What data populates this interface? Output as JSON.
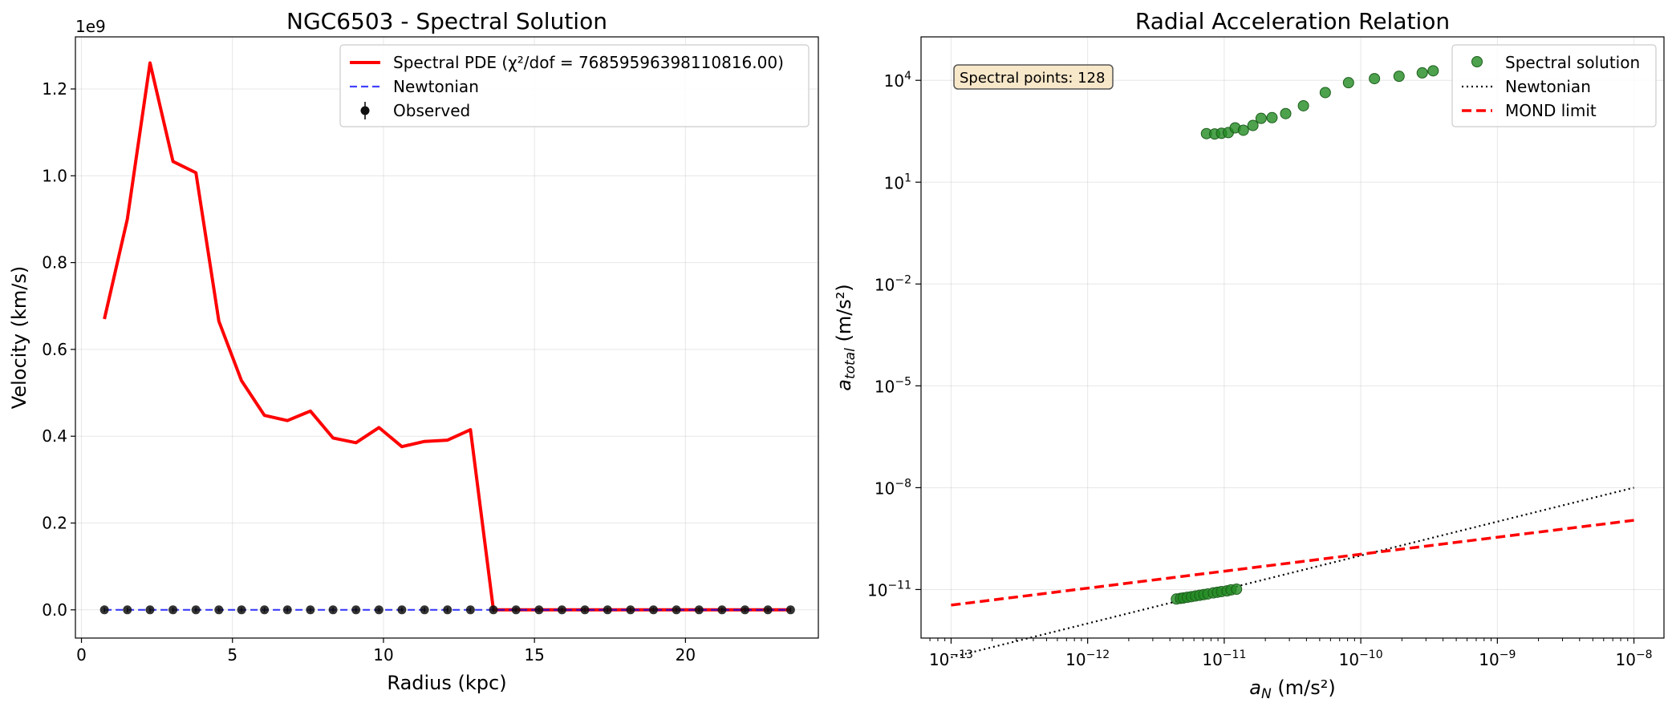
{
  "chart_data": [
    {
      "type": "line",
      "title": "NGC6503 - Spectral Solution",
      "xlabel": "Radius (kpc)",
      "ylabel": "Velocity (km/s)",
      "y_offset_label": "1e9",
      "xlim": [
        -0.2,
        24.4
      ],
      "ylim": [
        -0.065,
        1.32
      ],
      "y_scale_factor": 1000000000,
      "xticks": [
        0,
        5,
        10,
        15,
        20
      ],
      "xtick_labels": [
        "0",
        "5",
        "10",
        "15",
        "20"
      ],
      "yticks": [
        0.0,
        0.2,
        0.4,
        0.6,
        0.8,
        1.0,
        1.2
      ],
      "ytick_labels": [
        "0.0",
        "0.2",
        "0.4",
        "0.6",
        "0.8",
        "1.0",
        "1.2"
      ],
      "grid": true,
      "legend_position": "top-right",
      "x": [
        0.76,
        1.52,
        2.27,
        3.03,
        3.79,
        4.55,
        5.3,
        6.06,
        6.82,
        7.58,
        8.33,
        9.09,
        9.85,
        10.61,
        11.36,
        12.12,
        12.88,
        13.64,
        14.39,
        15.15,
        15.91,
        16.67,
        17.42,
        18.18,
        18.94,
        19.7,
        20.45,
        21.21,
        21.97,
        22.73,
        23.48
      ],
      "series": [
        {
          "name": "Spectral PDE (χ²/dof = 76859596398110816.00)",
          "style": "solid",
          "color": "#ff0000",
          "values": [
            0.67,
            0.9,
            1.26,
            1.033,
            1.007,
            0.665,
            0.528,
            0.448,
            0.436,
            0.458,
            0.396,
            0.385,
            0.42,
            0.376,
            0.388,
            0.391,
            0.415,
            0.0,
            0.0,
            0.0,
            0.0,
            0.0,
            0.0,
            0.0,
            0.0,
            0.0,
            0.0,
            0.0,
            0.0,
            0.0,
            0.0
          ]
        },
        {
          "name": "Newtonian",
          "style": "dashed",
          "color": "#0000ff",
          "values": [
            0,
            0,
            0,
            0,
            0,
            0,
            0,
            0,
            0,
            0,
            0,
            0,
            0,
            0,
            0,
            0,
            0,
            0,
            0,
            0,
            0,
            0,
            0,
            0,
            0,
            0,
            0,
            0,
            0,
            0,
            0
          ]
        },
        {
          "name": "Observed",
          "style": "errorbar-markers",
          "color": "#000000",
          "values": [
            0,
            0,
            0,
            0,
            0,
            0,
            0,
            0,
            0,
            0,
            0,
            0,
            0,
            0,
            0,
            0,
            0,
            0,
            0,
            0,
            0,
            0,
            0,
            0,
            0,
            0,
            0,
            0,
            0,
            0,
            0
          ]
        }
      ]
    },
    {
      "type": "scatter",
      "title": "Radial Acceleration Relation",
      "xlabel_main": "a",
      "xlabel_sub": "N",
      "xlabel_rest": " (m/s²)",
      "ylabel_main": "a",
      "ylabel_sub": "total",
      "ylabel_rest": " (m/s²)",
      "xscale": "log",
      "yscale": "log",
      "xlim_log10": [
        -13.22,
        -7.78
      ],
      "ylim_log10": [
        -12.43,
        5.28
      ],
      "xtick_exponents": [
        -13,
        -12,
        -11,
        -10,
        -9,
        -8
      ],
      "ytick_exponents": [
        -11,
        -8,
        -5,
        -2,
        1,
        4
      ],
      "grid": true,
      "legend_position": "top-right",
      "annotation": "Spectral points: 128",
      "series": [
        {
          "name": "Spectral solution",
          "style": "markers",
          "color": "#228b22",
          "points_log10": [
            [
              -11.13,
              2.43
            ],
            [
              -11.07,
              2.42
            ],
            [
              -11.02,
              2.44
            ],
            [
              -10.97,
              2.46
            ],
            [
              -10.92,
              2.6
            ],
            [
              -10.86,
              2.53
            ],
            [
              -10.79,
              2.67
            ],
            [
              -10.73,
              2.88
            ],
            [
              -10.65,
              2.9
            ],
            [
              -10.55,
              3.02
            ],
            [
              -10.42,
              3.25
            ],
            [
              -10.26,
              3.64
            ],
            [
              -10.09,
              3.93
            ],
            [
              -9.9,
              4.05
            ],
            [
              -9.72,
              4.12
            ],
            [
              -9.55,
              4.22
            ],
            [
              -9.47,
              4.28
            ],
            [
              -11.35,
              -11.28
            ],
            [
              -11.32,
              -11.26
            ],
            [
              -11.3,
              -11.25
            ],
            [
              -11.27,
              -11.23
            ],
            [
              -11.24,
              -11.21
            ],
            [
              -11.21,
              -11.19
            ],
            [
              -11.18,
              -11.17
            ],
            [
              -11.15,
              -11.15
            ],
            [
              -11.12,
              -11.13
            ],
            [
              -11.08,
              -11.1
            ],
            [
              -11.05,
              -11.08
            ],
            [
              -11.02,
              -11.06
            ],
            [
              -10.98,
              -11.04
            ],
            [
              -10.95,
              -11.01
            ],
            [
              -10.91,
              -10.99
            ]
          ]
        },
        {
          "name": "Newtonian",
          "style": "dotted",
          "color": "#000000",
          "line_log10": [
            [
              -13,
              -13
            ],
            [
              -8,
              -8
            ]
          ]
        },
        {
          "name": "MOND limit",
          "style": "dashed",
          "color": "#ff0000",
          "line_log10": [
            [
              -13,
              -11.46
            ],
            [
              -8,
              -8.96
            ]
          ]
        }
      ]
    }
  ]
}
